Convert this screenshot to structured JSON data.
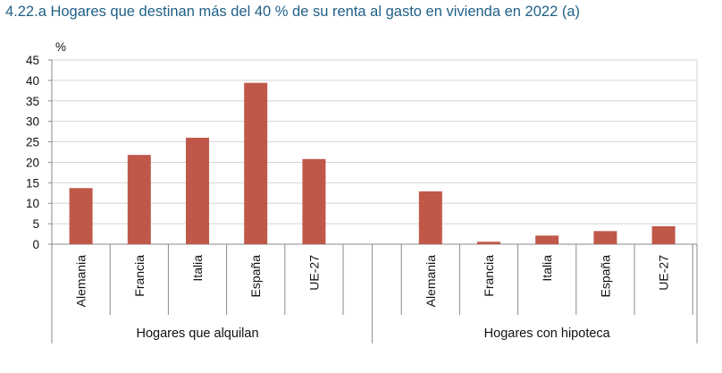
{
  "title": "4.22.a  Hogares que destinan más del 40 % de su renta al gasto en vivienda en 2022 (a)",
  "chart_data": {
    "type": "bar",
    "title": "4.22.a  Hogares que destinan más del 40 % de su renta al gasto en vivienda en 2022 (a)",
    "y_unit_label": "%",
    "ylim": [
      0,
      45
    ],
    "yticks": [
      0,
      5,
      10,
      15,
      20,
      25,
      30,
      35,
      40,
      45
    ],
    "grid": true,
    "bar_color": "#c0584a",
    "groups": [
      {
        "name": "Hogares que alquilan",
        "categories": [
          "Alemania",
          "Francia",
          "Italia",
          "España",
          "UE-27"
        ],
        "values": [
          13.7,
          21.8,
          26.0,
          39.4,
          20.8
        ]
      },
      {
        "name": "Hogares con hipoteca",
        "categories": [
          "Alemania",
          "Francia",
          "Italia",
          "España",
          "UE-27"
        ],
        "values": [
          12.9,
          0.6,
          2.1,
          3.2,
          4.4
        ]
      }
    ]
  }
}
